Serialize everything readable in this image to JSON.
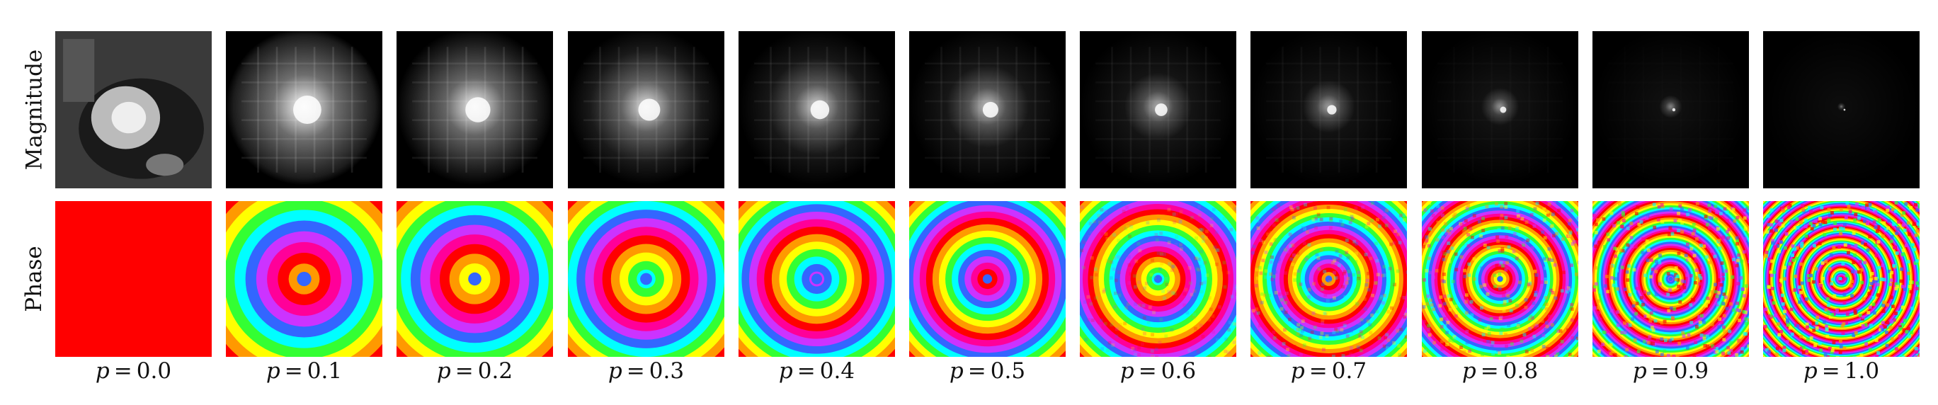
{
  "rows": {
    "magnitude_label": "Magnitude",
    "phase_label": "Phase"
  },
  "columns": [
    {
      "var": "p",
      "eq": "=",
      "value": "0.0",
      "p": 0.0
    },
    {
      "var": "p",
      "eq": "=",
      "value": "0.1",
      "p": 0.1
    },
    {
      "var": "p",
      "eq": "=",
      "value": "0.2",
      "p": 0.2
    },
    {
      "var": "p",
      "eq": "=",
      "value": "0.3",
      "p": 0.3
    },
    {
      "var": "p",
      "eq": "=",
      "value": "0.4",
      "p": 0.4
    },
    {
      "var": "p",
      "eq": "=",
      "value": "0.5",
      "p": 0.5
    },
    {
      "var": "p",
      "eq": "=",
      "value": "0.6",
      "p": 0.6
    },
    {
      "var": "p",
      "eq": "=",
      "value": "0.7",
      "p": 0.7
    },
    {
      "var": "p",
      "eq": "=",
      "value": "0.8",
      "p": 0.8
    },
    {
      "var": "p",
      "eq": "=",
      "value": "0.9",
      "p": 0.9
    },
    {
      "var": "p",
      "eq": "=",
      "value": "1.0",
      "p": 1.0
    }
  ],
  "colors": {
    "phase_zero": "#ff0000",
    "background": "#ffffff",
    "magnitude_bg": "#000000"
  }
}
